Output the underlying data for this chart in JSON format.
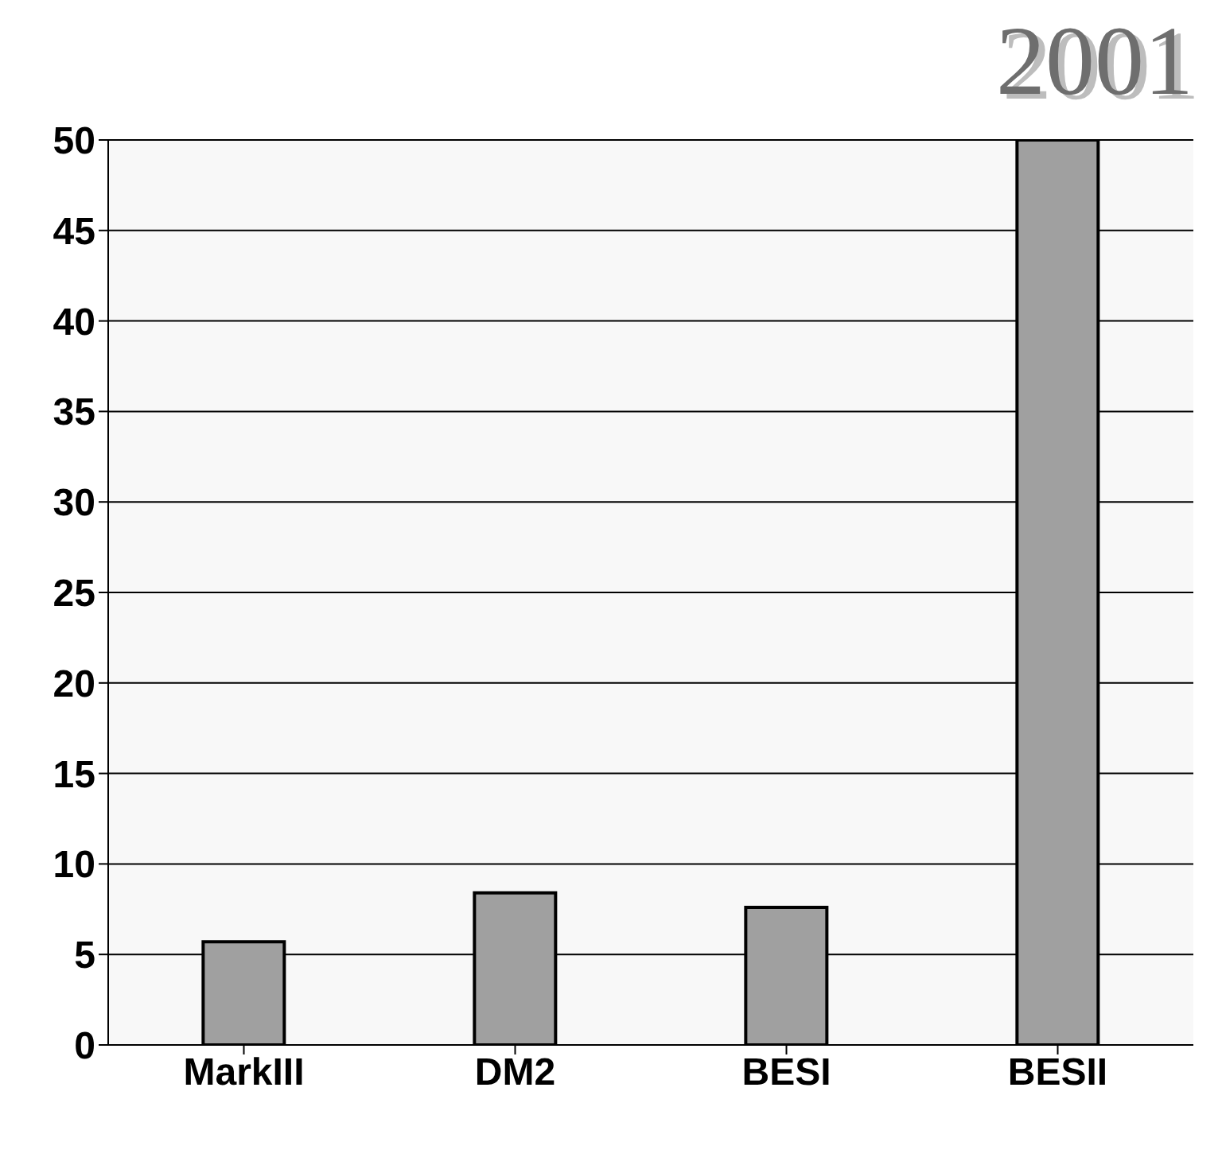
{
  "chart_data": {
    "type": "bar",
    "title": "2001",
    "categories": [
      "MarkIII",
      "DM2",
      "BESI",
      "BESII"
    ],
    "values": [
      5.7,
      8.4,
      7.6,
      50
    ],
    "color": "#a0a0a0",
    "ylim": [
      0,
      50
    ],
    "yticks": [
      0,
      5,
      10,
      15,
      20,
      25,
      30,
      35,
      40,
      45,
      50
    ],
    "grid": "y"
  }
}
